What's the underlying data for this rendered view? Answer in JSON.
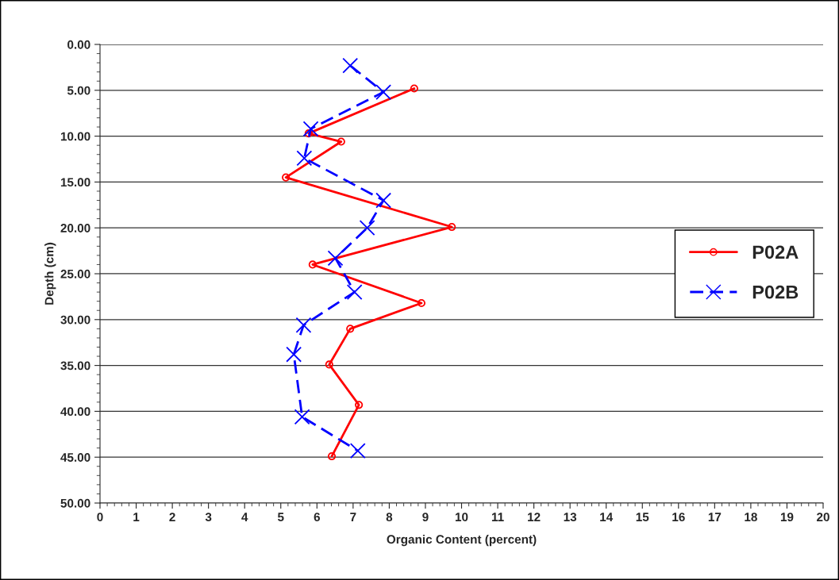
{
  "chart_data": {
    "type": "line",
    "xlabel": "Organic Content (percent)",
    "ylabel": "Depth (cm)",
    "series": [
      {
        "name": "P02A",
        "color": "#ff0000",
        "marker": "circle",
        "line_style": "solid",
        "x": [
          8.69,
          5.77,
          6.67,
          5.14,
          9.73,
          5.88,
          8.89,
          6.92,
          6.34,
          7.16,
          6.41
        ],
        "values": [
          4.8,
          9.7,
          10.6,
          14.5,
          19.9,
          24.0,
          28.2,
          31.0,
          34.9,
          39.3,
          44.9
        ]
      },
      {
        "name": "P02B",
        "color": "#0000ff",
        "marker": "cross",
        "line_style": "dashed",
        "x": [
          6.92,
          7.84,
          5.83,
          5.65,
          7.84,
          7.39,
          6.51,
          7.04,
          5.63,
          5.36,
          5.59,
          7.13
        ],
        "values": [
          2.3,
          5.2,
          9.2,
          12.4,
          17.0,
          20.0,
          23.3,
          27.0,
          30.6,
          33.8,
          40.6,
          44.3
        ]
      }
    ],
    "xlim": [
      0,
      20
    ],
    "xticks": [
      0,
      1,
      2,
      3,
      4,
      5,
      6,
      7,
      8,
      9,
      10,
      11,
      12,
      13,
      14,
      15,
      16,
      17,
      18,
      19,
      20
    ],
    "ylim": [
      50,
      0
    ],
    "yticks": [
      {
        "value": 0,
        "label": "0.00"
      },
      {
        "value": 5,
        "label": "5.00"
      },
      {
        "value": 10,
        "label": "10.00"
      },
      {
        "value": 15,
        "label": "15.00"
      },
      {
        "value": 20,
        "label": "20.00"
      },
      {
        "value": 25,
        "label": "25.00"
      },
      {
        "value": 30,
        "label": "30.00"
      },
      {
        "value": 35,
        "label": "35.00"
      },
      {
        "value": 40,
        "label": "40.00"
      },
      {
        "value": 45,
        "label": "45.00"
      },
      {
        "value": 50,
        "label": "50.00"
      }
    ],
    "grid": "y",
    "legend": "right"
  }
}
